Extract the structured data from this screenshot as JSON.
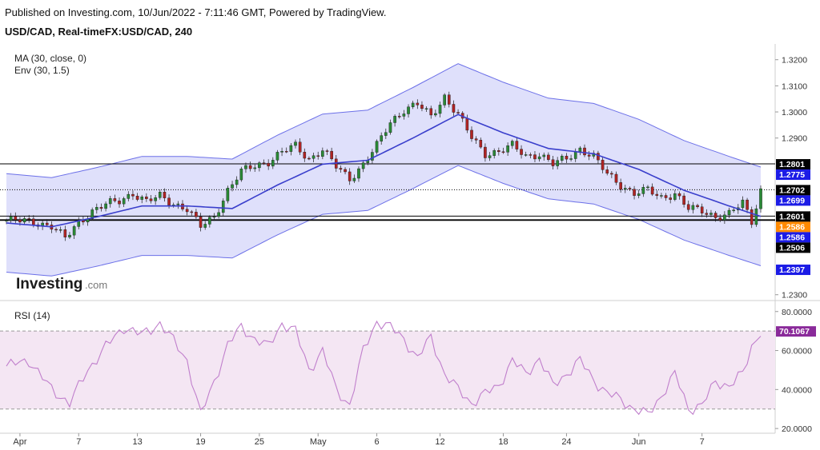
{
  "header": {
    "published": "Published on Investing.com, 10/Jun/2022 - 7:11:46 GMT, Powered by TradingView.",
    "symbol": "USD/CAD, Real-timeFX:USD/CAD, 240"
  },
  "indicators": {
    "ma": "MA (30, close, 0)",
    "env": "Env (30, 1.5)",
    "rsi": "RSI (14)"
  },
  "logo": {
    "word": "Investing",
    "suffix": ".com"
  },
  "colors": {
    "band_fill": "#dfe0fb",
    "band_line": "#6c70e8",
    "ma_line": "#3a3fcc",
    "candle_up": "#2a8a36",
    "candle_down": "#b02424",
    "rsi_line": "#c07fcc",
    "rsi_fill": "#f4e6f3",
    "label_black": "#000000",
    "label_blue": "#1b1be6",
    "label_orange": "#ff8a00"
  },
  "chart_data": [
    {
      "type": "candlestick",
      "title": "USD/CAD, Real-timeFX:USD/CAD, 240",
      "y_ticks": [
        "1.3200",
        "1.3100",
        "1.3000",
        "1.2900",
        "1.2300"
      ],
      "ylim": [
        1.229,
        1.3245
      ],
      "x_ticks": [
        "Apr",
        "7",
        "13",
        "19",
        "25",
        "May",
        "6",
        "12",
        "18",
        "24",
        "Jun",
        "7"
      ],
      "close_path": [
        [
          0,
          1.2585
        ],
        [
          6,
          1.258
        ],
        [
          10,
          1.2562
        ],
        [
          13,
          1.2515
        ],
        [
          16,
          1.2578
        ],
        [
          19,
          1.262
        ],
        [
          22,
          1.2645
        ],
        [
          25,
          1.266
        ],
        [
          28,
          1.269
        ],
        [
          31,
          1.2655
        ],
        [
          34,
          1.2678
        ],
        [
          37,
          1.265
        ],
        [
          40,
          1.2628
        ],
        [
          43,
          1.256
        ],
        [
          46,
          1.26
        ],
        [
          49,
          1.27
        ],
        [
          52,
          1.277
        ],
        [
          55,
          1.2795
        ],
        [
          58,
          1.281
        ],
        [
          61,
          1.2845
        ],
        [
          64,
          1.287
        ],
        [
          67,
          1.282
        ],
        [
          70,
          1.2855
        ],
        [
          73,
          1.279
        ],
        [
          76,
          1.2745
        ],
        [
          79,
          1.28
        ],
        [
          82,
          1.287
        ],
        [
          85,
          1.296
        ],
        [
          88,
          1.301
        ],
        [
          91,
          1.303
        ],
        [
          94,
          1.298
        ],
        [
          97,
          1.306
        ],
        [
          100,
          1.299
        ],
        [
          103,
          1.29
        ],
        [
          106,
          1.284
        ],
        [
          109,
          1.285
        ],
        [
          112,
          1.287
        ],
        [
          115,
          1.283
        ],
        [
          118,
          1.284
        ],
        [
          121,
          1.28
        ],
        [
          124,
          1.282
        ],
        [
          127,
          1.286
        ],
        [
          130,
          1.283
        ],
        [
          133,
          1.276
        ],
        [
          136,
          1.272
        ],
        [
          139,
          1.269
        ],
        [
          142,
          1.27
        ],
        [
          145,
          1.267
        ],
        [
          148,
          1.269
        ],
        [
          151,
          1.263
        ],
        [
          154,
          1.262
        ],
        [
          157,
          1.26
        ],
        [
          160,
          1.261
        ],
        [
          163,
          1.265
        ],
        [
          165,
          1.258
        ],
        [
          167,
          1.2702
        ]
      ],
      "ma_path": [
        [
          0,
          1.2575
        ],
        [
          10,
          1.256
        ],
        [
          20,
          1.2598
        ],
        [
          30,
          1.264
        ],
        [
          40,
          1.264
        ],
        [
          50,
          1.263
        ],
        [
          60,
          1.272
        ],
        [
          70,
          1.28
        ],
        [
          80,
          1.2815
        ],
        [
          90,
          1.29
        ],
        [
          100,
          1.299
        ],
        [
          110,
          1.292
        ],
        [
          120,
          1.286
        ],
        [
          130,
          1.284
        ],
        [
          140,
          1.278
        ],
        [
          150,
          1.27
        ],
        [
          160,
          1.264
        ],
        [
          167,
          1.26
        ]
      ],
      "env_pct": 1.5,
      "horizontal_levels": [
        {
          "label": "1.2801",
          "value": 1.2801,
          "style": "solid"
        },
        {
          "label": "1.2702",
          "value": 1.2702,
          "style": "dotted"
        },
        {
          "label": "1.2601",
          "value": 1.2601,
          "style": "solid"
        },
        {
          "label": "1.2586",
          "value": 1.2586,
          "style": "thick"
        }
      ],
      "price_labels": [
        {
          "text": "1.2801",
          "value": 1.2801,
          "bg": "label_black"
        },
        {
          "text": "1.2775",
          "value": 1.2775,
          "bg": "label_blue"
        },
        {
          "text": "1.2702",
          "value": 1.2702,
          "bg": "label_black"
        },
        {
          "text": "1.2699",
          "value": 1.2699,
          "bg": "label_blue"
        },
        {
          "text": "1.2601",
          "value": 1.2601,
          "bg": "label_black"
        },
        {
          "text": "1.2586",
          "value": 1.2586,
          "bg": "label_orange"
        },
        {
          "text": "1.2586",
          "value": 1.2586,
          "bg": "label_blue"
        },
        {
          "text": "1.2506",
          "value": 1.2506,
          "bg": "label_black"
        },
        {
          "text": "1.2397",
          "value": 1.2397,
          "bg": "label_blue"
        }
      ]
    },
    {
      "type": "line",
      "title": "RSI (14)",
      "y_ticks": [
        "80.0000",
        "60.0000",
        "40.0000",
        "20.0000"
      ],
      "ylim": [
        20,
        80
      ],
      "overbought": 70,
      "oversold": 30,
      "last_value_label": "70.1067",
      "rsi_path": [
        [
          0,
          52
        ],
        [
          5,
          55
        ],
        [
          10,
          40
        ],
        [
          14,
          33
        ],
        [
          18,
          50
        ],
        [
          22,
          62
        ],
        [
          26,
          72
        ],
        [
          30,
          68
        ],
        [
          34,
          74
        ],
        [
          37,
          65
        ],
        [
          40,
          55
        ],
        [
          43,
          27
        ],
        [
          46,
          44
        ],
        [
          49,
          63
        ],
        [
          52,
          72
        ],
        [
          55,
          66
        ],
        [
          58,
          62
        ],
        [
          61,
          74
        ],
        [
          64,
          70
        ],
        [
          67,
          50
        ],
        [
          70,
          60
        ],
        [
          73,
          40
        ],
        [
          76,
          32
        ],
        [
          79,
          60
        ],
        [
          82,
          75
        ],
        [
          85,
          72
        ],
        [
          88,
          66
        ],
        [
          91,
          56
        ],
        [
          94,
          67
        ],
        [
          97,
          48
        ],
        [
          100,
          40
        ],
        [
          103,
          33
        ],
        [
          106,
          38
        ],
        [
          109,
          42
        ],
        [
          112,
          55
        ],
        [
          115,
          48
        ],
        [
          118,
          56
        ],
        [
          121,
          42
        ],
        [
          124,
          48
        ],
        [
          127,
          55
        ],
        [
          130,
          45
        ],
        [
          133,
          38
        ],
        [
          136,
          35
        ],
        [
          139,
          30
        ],
        [
          142,
          27
        ],
        [
          145,
          37
        ],
        [
          148,
          48
        ],
        [
          151,
          30
        ],
        [
          154,
          32
        ],
        [
          157,
          44
        ],
        [
          160,
          42
        ],
        [
          163,
          48
        ],
        [
          165,
          62
        ],
        [
          167,
          70
        ]
      ]
    }
  ]
}
